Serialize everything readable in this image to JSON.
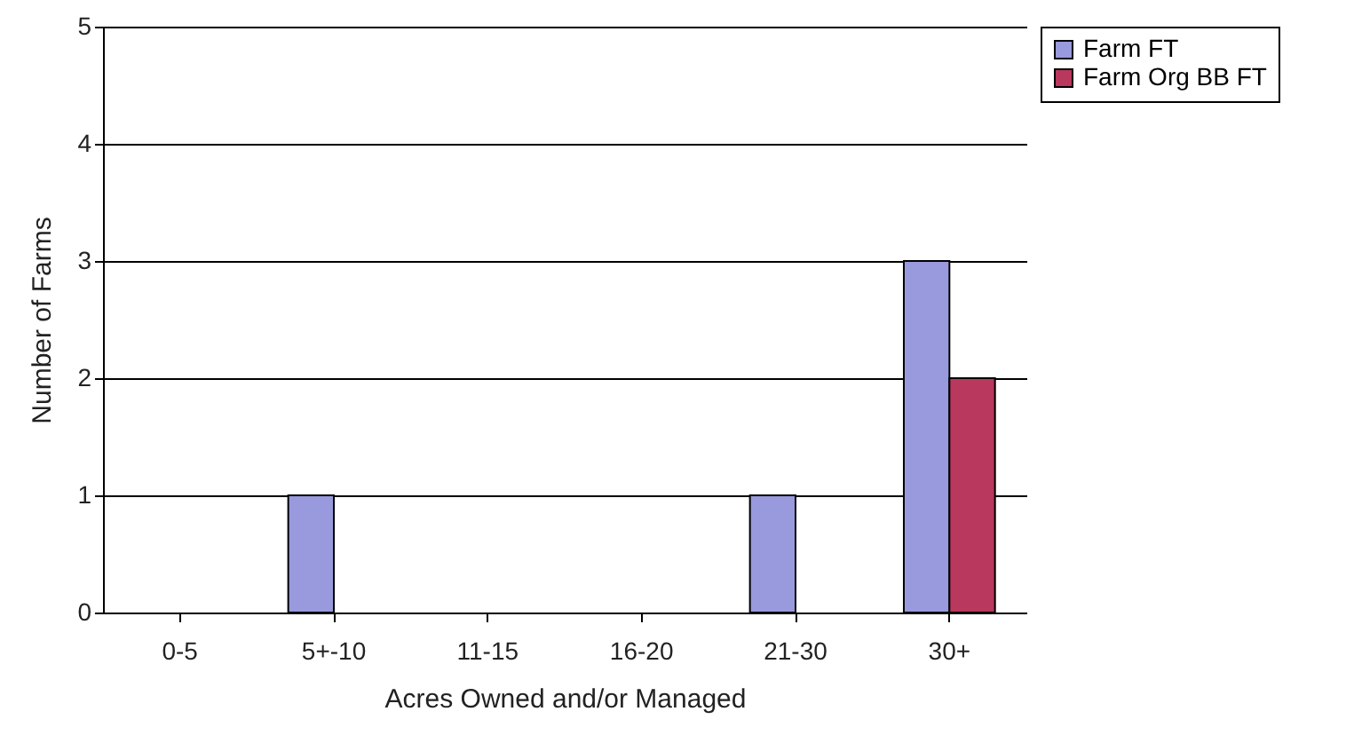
{
  "chart_data": {
    "type": "bar",
    "xlabel": "Acres Owned and/or Managed",
    "ylabel": "Number of Farms",
    "categories": [
      "0-5",
      "5+-10",
      "11-15",
      "16-20",
      "21-30",
      "30+"
    ],
    "series": [
      {
        "name": "Farm FT",
        "color": "#9999dd",
        "values": [
          0,
          1,
          0,
          0,
          1,
          3
        ]
      },
      {
        "name": "Farm Org BB FT",
        "color": "#b8385e",
        "values": [
          0,
          0,
          0,
          0,
          0,
          2
        ]
      }
    ],
    "ylim": [
      0,
      5
    ],
    "yticks": [
      0,
      1,
      2,
      3,
      4,
      5
    ],
    "grid": "y",
    "legend": "right"
  }
}
